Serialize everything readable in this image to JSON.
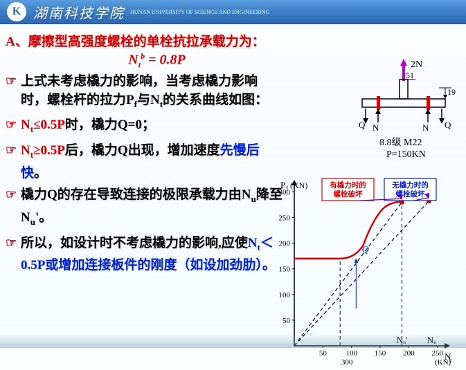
{
  "header": {
    "school": "湖南科技学院",
    "sub": "HUNAN UNIVERSITY OF SCIENCE AND ENGINEERING",
    "logo_char": "K"
  },
  "title": "A、摩擦型高强度螺栓的单栓抗拉承载力为：",
  "formula": {
    "lhs_N": "N",
    "lhs_sub": "t",
    "lhs_sup": "b",
    "eq": " = ",
    "rhs": "0.8P"
  },
  "diagram_top": {
    "label_2N": "2N",
    "dim_51": "51",
    "dim_19": "19",
    "Q": "Q",
    "N": "N",
    "spec": "8.8级 M22",
    "load": "P=150KN"
  },
  "bullets": [
    {
      "parts": [
        {
          "t": "上式未考虑橇力的影响，当考虑橇力影响时，螺栓杆的拉力P",
          "c": ""
        },
        {
          "t": "f",
          "c": "",
          "sub": true
        },
        {
          "t": "与N",
          "c": ""
        },
        {
          "t": "t",
          "c": "",
          "sub": true
        },
        {
          "t": "的关系曲线如图：",
          "c": ""
        }
      ]
    },
    {
      "parts": [
        {
          "t": "N",
          "c": "red"
        },
        {
          "t": "t",
          "c": "red",
          "sub": true
        },
        {
          "t": "≤0.5P时，橇力Q=0；",
          "c": "red",
          "after_black": "时，橇力Q=0；",
          "split": true
        }
      ],
      "raw_red": "N",
      "raw": "时，橇力Q=0；"
    },
    {
      "parts": []
    },
    {
      "parts": []
    },
    {
      "parts": []
    }
  ],
  "b2": {
    "a": "N",
    "asub": "t",
    "b": "≤0.5P",
    "c": "时，橇力Q=0；"
  },
  "b3": {
    "a": "N",
    "asub": "t",
    "b": "≥0.5P",
    "c": "后，橇力Q出现，增加速度",
    "d": "先慢后快",
    "e": "。"
  },
  "b4": {
    "a": "橇力Q的存在导致连接的极限承载力由N",
    "asub": "u",
    "b": "降至N",
    "bsub": "u",
    "c": "'。"
  },
  "b5": {
    "a": "所以，如设计时不考虑橇力的影响,应使",
    "b": "N",
    "bsub": "t",
    "c": "＜0.5P或增加连接板件的刚度（如设加劲肋）。"
  },
  "chart": {
    "ylabel": "P",
    "ylabel_sub": "f",
    "yunit": "(KN)",
    "xlabel": "N",
    "xlabel_sub": "t",
    "xunit": "(KN)",
    "yticks": [
      50,
      100,
      150,
      200,
      250,
      300
    ],
    "xticks": [
      50,
      100,
      150,
      200,
      250
    ],
    "x_bottom_mark": "300",
    "Q": "Q",
    "Nu_prime": "Nᵤ'",
    "Nu": "Nᵤ",
    "box1": "有橇力时的螺栓破坏",
    "box2": "无橇力时的螺栓破坏",
    "colors": {
      "curve": "#d40000",
      "dashed": "#000",
      "box1_border": "#d40000",
      "box2_border": "#0020cc",
      "box1_text": "#d40000",
      "box2_text": "#0020cc",
      "arrow": "#6000c0",
      "Q": "#0020cc"
    },
    "red_points": [
      [
        0,
        170
      ],
      [
        80,
        170
      ],
      [
        110,
        178
      ],
      [
        140,
        230
      ],
      [
        160,
        270
      ],
      [
        188,
        280
      ]
    ],
    "dashed_main": [
      [
        0,
        0
      ],
      [
        250,
        300
      ]
    ],
    "dashed_alt": [
      [
        0,
        0
      ],
      [
        188,
        280
      ]
    ],
    "vdrop1": 80,
    "vdrop2": 188,
    "Nu_prime_x": 188,
    "Nu_x": 250
  }
}
